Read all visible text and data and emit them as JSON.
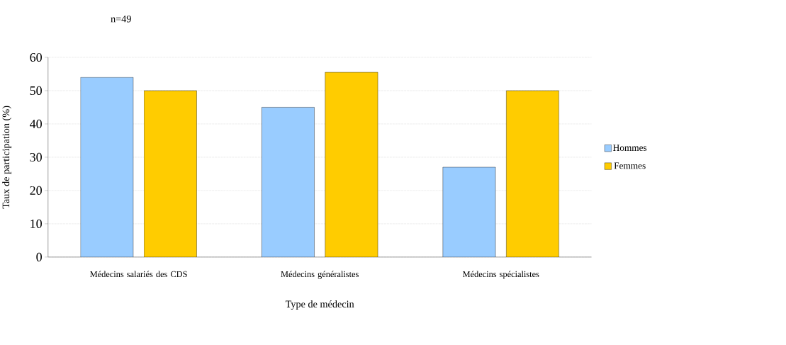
{
  "chart_data": {
    "type": "bar",
    "xlabel": "Type de médecin",
    "ylabel": "Taux de participation (%)",
    "categories": [
      "Médecins salariés des CDS",
      "Médecins généralistes",
      "Médecins spécialistes"
    ],
    "series": [
      {
        "name": "Hommes",
        "color": "#99ccff",
        "values": [
          54,
          45,
          27
        ]
      },
      {
        "name": "Femmes",
        "color": "#ffcc00",
        "values": [
          50,
          55.5,
          50
        ]
      }
    ],
    "ylim": [
      0,
      60
    ],
    "yticks": [
      0,
      10,
      20,
      30,
      40,
      50,
      60
    ],
    "grid": "y",
    "legend": "right",
    "annotations": [
      "n=49"
    ]
  }
}
